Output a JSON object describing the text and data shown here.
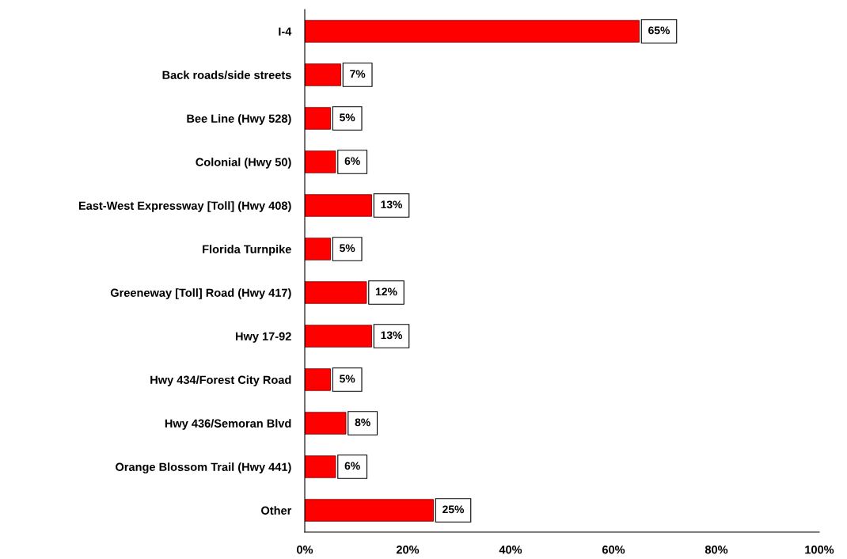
{
  "chart_data": {
    "type": "bar",
    "orientation": "horizontal",
    "categories": [
      "I-4",
      "Back roads/side streets",
      "Bee Line (Hwy 528)",
      "Colonial (Hwy 50)",
      "East-West Expressway [Toll] (Hwy 408)",
      "Florida Turnpike",
      "Greeneway [Toll] Road (Hwy 417)",
      "Hwy 17-92",
      "Hwy 434/Forest City Road",
      "Hwy 436/Semoran Blvd",
      "Orange Blossom Trail (Hwy 441)",
      "Other"
    ],
    "values": [
      65,
      7,
      5,
      6,
      13,
      5,
      12,
      13,
      5,
      8,
      6,
      25
    ],
    "value_labels": [
      "65%",
      "7%",
      "5%",
      "6%",
      "13%",
      "5%",
      "12%",
      "13%",
      "5%",
      "8%",
      "6%",
      "25%"
    ],
    "color": "#ff0000",
    "xlim": [
      0,
      100
    ],
    "xticks": [
      {
        "value": 0,
        "label": "0%"
      },
      {
        "value": 20,
        "label": "20%"
      },
      {
        "value": 40,
        "label": "40%"
      },
      {
        "value": 60,
        "label": "60%"
      },
      {
        "value": 80,
        "label": "80%"
      },
      {
        "value": 100,
        "label": "100%"
      }
    ],
    "grid": false,
    "legend": false
  }
}
